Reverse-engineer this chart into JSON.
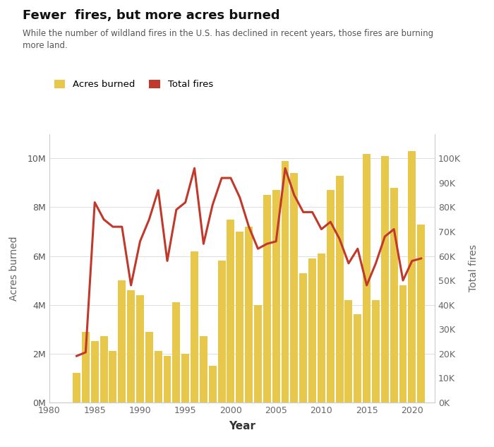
{
  "title": "Fewer  fires, but more acres burned",
  "subtitle": "While the number of wildland fires in the U.S. has declined in recent years, those fires are burning\nmore land.",
  "xlabel": "Year",
  "ylabel_left": "Acres burned",
  "ylabel_right": "Total fires",
  "bar_color": "#E8C84A",
  "line_color": "#C0392B",
  "background_color": "#FFFFFF",
  "years": [
    1983,
    1984,
    1985,
    1986,
    1987,
    1988,
    1989,
    1990,
    1991,
    1992,
    1993,
    1994,
    1995,
    1996,
    1997,
    1998,
    1999,
    2000,
    2001,
    2002,
    2003,
    2004,
    2005,
    2006,
    2007,
    2008,
    2009,
    2010,
    2011,
    2012,
    2013,
    2014,
    2015,
    2016,
    2017,
    2018,
    2019,
    2020,
    2021
  ],
  "acres_burned": [
    1200000,
    2900000,
    2500000,
    2700000,
    2100000,
    5000000,
    4600000,
    4400000,
    2900000,
    2100000,
    1900000,
    4100000,
    2000000,
    6200000,
    2700000,
    1500000,
    5800000,
    7500000,
    7000000,
    7200000,
    4000000,
    8500000,
    8700000,
    9900000,
    9400000,
    5300000,
    5900000,
    6100000,
    8700000,
    9300000,
    4200000,
    3600000,
    10200000,
    4200000,
    10100000,
    8800000,
    4800000,
    10300000,
    7300000
  ],
  "total_fires": [
    19000,
    20500,
    82000,
    75000,
    72000,
    72000,
    48000,
    66000,
    75000,
    87000,
    58000,
    79000,
    82000,
    96000,
    65000,
    81000,
    92000,
    92000,
    84000,
    72000,
    63000,
    65000,
    66000,
    96000,
    85000,
    78000,
    78000,
    71000,
    74000,
    67000,
    57000,
    63000,
    48000,
    57000,
    68000,
    71000,
    50000,
    58000,
    59000
  ],
  "xlim": [
    1980.5,
    2022.5
  ],
  "ylim_left": [
    0,
    11000000
  ],
  "ylim_right": [
    0,
    110000
  ],
  "yticks_left": [
    0,
    2000000,
    4000000,
    6000000,
    8000000,
    10000000
  ],
  "ytick_labels_left": [
    "0M",
    "2M",
    "4M",
    "6M",
    "8M",
    "10M"
  ],
  "yticks_right": [
    0,
    10000,
    20000,
    30000,
    40000,
    50000,
    60000,
    70000,
    80000,
    90000,
    100000
  ],
  "ytick_labels_right": [
    "0K",
    "10K",
    "20K",
    "30K",
    "40K",
    "50K",
    "60K",
    "70K",
    "80K",
    "90K",
    "100K"
  ],
  "xticks": [
    1980,
    1985,
    1990,
    1995,
    2000,
    2005,
    2010,
    2015,
    2020
  ],
  "legend_labels": [
    "Acres burned",
    "Total fires"
  ]
}
